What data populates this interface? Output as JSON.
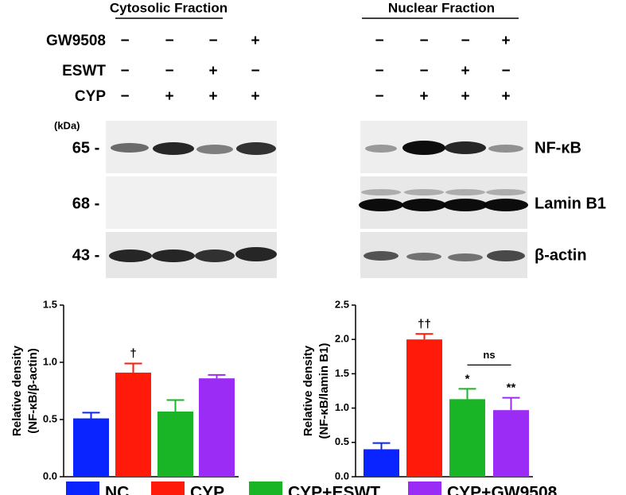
{
  "blot": {
    "fractions": [
      "Cytosolic Fraction",
      "Nuclear Fraction"
    ],
    "treatments": [
      {
        "name": "GW9508",
        "signs": [
          "−",
          "−",
          "−",
          "+"
        ]
      },
      {
        "name": "ESWT",
        "signs": [
          "−",
          "−",
          "+",
          "−"
        ]
      },
      {
        "name": "CYP",
        "signs": [
          "−",
          "+",
          "+",
          "+"
        ]
      }
    ],
    "unit": "(kDa)",
    "bands": [
      {
        "size": "65 -",
        "name": "NF-κB"
      },
      {
        "size": "68 -",
        "name": "Lamin B1"
      },
      {
        "size": "43 -",
        "name": "β-actin"
      }
    ]
  },
  "legend": {
    "labels": [
      "NC",
      "CYP",
      "CYP+ESWT",
      "CYP+GW9508"
    ],
    "colors": [
      "#0a24ff",
      "#ff1a0a",
      "#1ab526",
      "#9a2cf5"
    ]
  },
  "chart_data": [
    {
      "type": "bar",
      "ylabel": [
        "Relative density",
        "(NF-κB/β-actin)"
      ],
      "values": [
        0.51,
        0.91,
        0.57,
        0.86
      ],
      "errors": [
        0.05,
        0.08,
        0.1,
        0.03
      ],
      "annotations": [
        null,
        "†",
        null,
        null
      ],
      "ylim": [
        0,
        1.5
      ],
      "yticks": [
        {
          "value": 0,
          "label": "0.0"
        },
        {
          "value": 0.5,
          "label": "0.5"
        },
        {
          "value": 1,
          "label": "1.0"
        },
        {
          "value": 1.5,
          "label": "1.5"
        }
      ]
    },
    {
      "type": "bar",
      "ylabel": [
        "Relative density",
        "(NF-κB/lamin B1)"
      ],
      "values": [
        0.4,
        2.0,
        1.13,
        0.97
      ],
      "errors": [
        0.09,
        0.08,
        0.15,
        0.18
      ],
      "annotations": [
        null,
        "††",
        "*",
        "**"
      ],
      "bracket_label": "ns",
      "ylim": [
        0,
        2.5
      ],
      "yticks": [
        {
          "value": 0,
          "label": "0.0"
        },
        {
          "value": 0.5,
          "label": "0.5"
        },
        {
          "value": 1,
          "label": "1.0"
        },
        {
          "value": 1.5,
          "label": "1.5"
        },
        {
          "value": 2,
          "label": "2.0"
        },
        {
          "value": 2.5,
          "label": "2.5"
        }
      ]
    }
  ]
}
